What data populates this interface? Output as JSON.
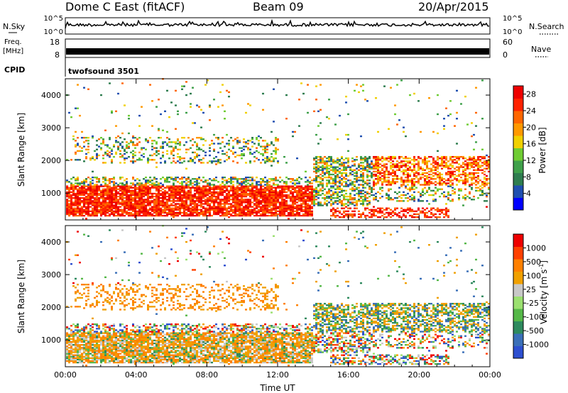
{
  "header": {
    "site": "Dome C East (fitACF)",
    "beam": "Beam 09",
    "date": "20/Apr/2015"
  },
  "top_panels": {
    "nsky_label": "N.Sky",
    "nsky_ticks": [
      "10^5",
      "10^0"
    ],
    "nsearch_label": "N.Search",
    "nsearch_ticks": [
      "10^5",
      "10^0"
    ],
    "freq_label": "Freq.",
    "freq_unit": "[MHz]",
    "freq_ticks": [
      "18",
      "8"
    ],
    "nave_label": "Nave",
    "nave_ticks": [
      "60",
      "0"
    ],
    "cpid_label": "CPID",
    "cpid_value": "twofsound 3501"
  },
  "colors": {
    "power": [
      "#0000ff",
      "#1f4fb0",
      "#2e7d4f",
      "#3fa04a",
      "#6fcc33",
      "#f0d000",
      "#ff9900",
      "#ff6600",
      "#ff2200",
      "#ee0000"
    ],
    "velocity": [
      "#2d4fd0",
      "#3a6fb8",
      "#2e8a5e",
      "#55b848",
      "#9be070",
      "#c8c8c8",
      "#f0a000",
      "#ff8000",
      "#ff4000",
      "#ee0000"
    ]
  },
  "chart_data": [
    {
      "type": "heatmap",
      "name": "Power",
      "ylabel": "Slant Range [km]",
      "x_ticks": [
        "00:00",
        "04:00",
        "08:00",
        "12:00",
        "16:00",
        "20:00",
        "00:00"
      ],
      "y_ticks": [
        1000,
        2000,
        3000,
        4000
      ],
      "ylim": [
        180,
        4500
      ],
      "colorbar_label": "Power [dB]",
      "colorbar_ticks": [
        4,
        8,
        12,
        16,
        20,
        24,
        28
      ],
      "colorbar_range": [
        0,
        30
      ]
    },
    {
      "type": "heatmap",
      "name": "Velocity",
      "ylabel": "Slant Range [km]",
      "xlabel": "Time UT",
      "x_ticks": [
        "00:00",
        "04:00",
        "08:00",
        "12:00",
        "16:00",
        "20:00",
        "00:00"
      ],
      "y_ticks": [
        1000,
        2000,
        3000,
        4000
      ],
      "ylim": [
        180,
        4500
      ],
      "colorbar_label": "Velocity [m s",
      "colorbar_label_sup": "-1",
      "colorbar_label_end": "]",
      "colorbar_ticks": [
        "1000",
        "500",
        "100",
        "25",
        "-25",
        "-100",
        "-500",
        "-1000"
      ]
    }
  ]
}
